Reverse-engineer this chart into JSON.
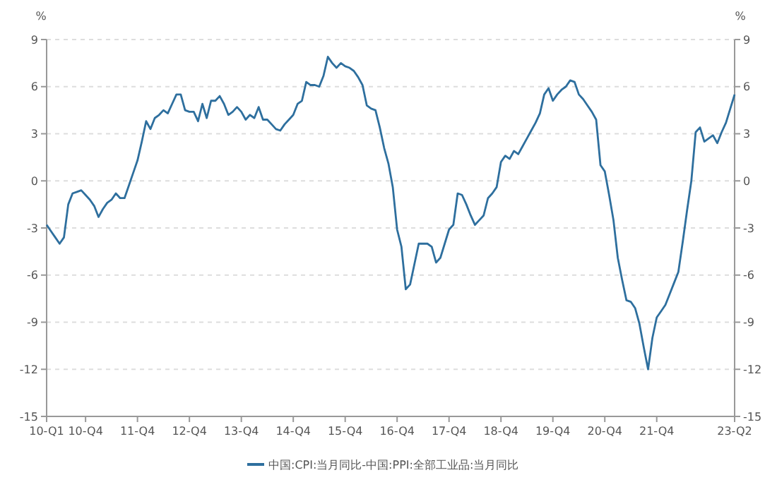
{
  "chart_data": {
    "type": "line",
    "ylabel": "%",
    "y2label": "%",
    "categories": [
      "10-Q1",
      null,
      null,
      null,
      null,
      null,
      null,
      null,
      null,
      "10-Q4",
      null,
      null,
      null,
      null,
      null,
      null,
      null,
      null,
      null,
      null,
      null,
      "11-Q4",
      null,
      null,
      null,
      null,
      null,
      null,
      null,
      null,
      null,
      null,
      null,
      "12-Q4",
      null,
      null,
      null,
      null,
      null,
      null,
      null,
      null,
      null,
      null,
      null,
      "13-Q4",
      null,
      null,
      null,
      null,
      null,
      null,
      null,
      null,
      null,
      null,
      null,
      "14-Q4",
      null,
      null,
      null,
      null,
      null,
      null,
      null,
      null,
      null,
      null,
      null,
      "15-Q4",
      null,
      null,
      null,
      null,
      null,
      null,
      null,
      null,
      null,
      null,
      null,
      "16-Q4",
      null,
      null,
      null,
      null,
      null,
      null,
      null,
      null,
      null,
      null,
      null,
      "17-Q4",
      null,
      null,
      null,
      null,
      null,
      null,
      null,
      null,
      null,
      null,
      null,
      "18-Q4",
      null,
      null,
      null,
      null,
      null,
      null,
      null,
      null,
      null,
      null,
      null,
      "19-Q4",
      null,
      null,
      null,
      null,
      null,
      null,
      null,
      null,
      null,
      null,
      null,
      "20-Q4",
      null,
      null,
      null,
      null,
      null,
      null,
      null,
      null,
      null,
      null,
      null,
      "21-Q4",
      null,
      null,
      null,
      null,
      null,
      null,
      null,
      null,
      null,
      null,
      null,
      null,
      null,
      null,
      null,
      null,
      null,
      "23-Q2"
    ],
    "series": [
      {
        "name": "中国:CPI:当月同比-中国:PPI:全部工业品:当月同比",
        "color": "#2e6f9e",
        "values": [
          -2.8,
          -3.2,
          -3.6,
          -4.0,
          -3.6,
          -1.5,
          -0.8,
          -0.7,
          -0.6,
          -0.9,
          -1.2,
          -1.6,
          -2.3,
          -1.8,
          -1.4,
          -1.2,
          -0.8,
          -1.1,
          -1.1,
          -0.3,
          0.5,
          1.3,
          2.5,
          3.8,
          3.3,
          4.0,
          4.2,
          4.5,
          4.3,
          4.9,
          5.5,
          5.5,
          4.5,
          4.4,
          4.4,
          3.8,
          4.9,
          4.0,
          5.1,
          5.1,
          5.4,
          4.9,
          4.2,
          4.4,
          4.7,
          4.4,
          3.9,
          4.2,
          4.0,
          4.7,
          3.9,
          3.9,
          3.6,
          3.3,
          3.2,
          3.6,
          3.9,
          4.2,
          4.9,
          5.1,
          6.3,
          6.1,
          6.1,
          6.0,
          6.7,
          7.9,
          7.5,
          7.2,
          7.5,
          7.3,
          7.2,
          7.0,
          6.6,
          6.1,
          4.8,
          4.6,
          4.5,
          3.4,
          2.1,
          1.1,
          -0.4,
          -3.1,
          -4.2,
          -6.9,
          -6.6,
          -5.3,
          -4.0,
          -4.0,
          -4.0,
          -4.2,
          -5.2,
          -4.9,
          -4.0,
          -3.1,
          -2.8,
          -0.8,
          -0.9,
          -1.5,
          -2.2,
          -2.8,
          -2.5,
          -2.2,
          -1.1,
          -0.8,
          -0.4,
          1.2,
          1.6,
          1.4,
          1.9,
          1.7,
          2.2,
          2.7,
          3.2,
          3.7,
          4.3,
          5.5,
          5.9,
          5.1,
          5.5,
          5.8,
          6.0,
          6.4,
          6.3,
          5.5,
          5.2,
          4.8,
          4.4,
          3.9,
          1.0,
          0.6,
          -0.9,
          -2.5,
          -4.9,
          -6.3,
          -7.6,
          -7.7,
          -8.1,
          -9.1,
          -10.6,
          -12.0,
          -10.0,
          -8.7,
          -8.3,
          -7.9,
          -7.2,
          -6.5,
          -5.8,
          -3.9,
          -1.9,
          0.0,
          3.1,
          3.4,
          2.5,
          2.7,
          2.9,
          2.4,
          3.1,
          3.7,
          4.6,
          5.5
        ]
      }
    ],
    "ylim": [
      -15,
      9
    ],
    "yticks": [
      -15,
      -12,
      -9,
      -6,
      -3,
      0,
      3,
      6,
      9
    ],
    "y2lim": [
      -15,
      9
    ],
    "y2ticks": [
      -15,
      -12,
      -9,
      -6,
      -3,
      0,
      3,
      6,
      9
    ],
    "grid": "y",
    "legend": "bottom",
    "marker": "none",
    "line_style": "solid"
  }
}
